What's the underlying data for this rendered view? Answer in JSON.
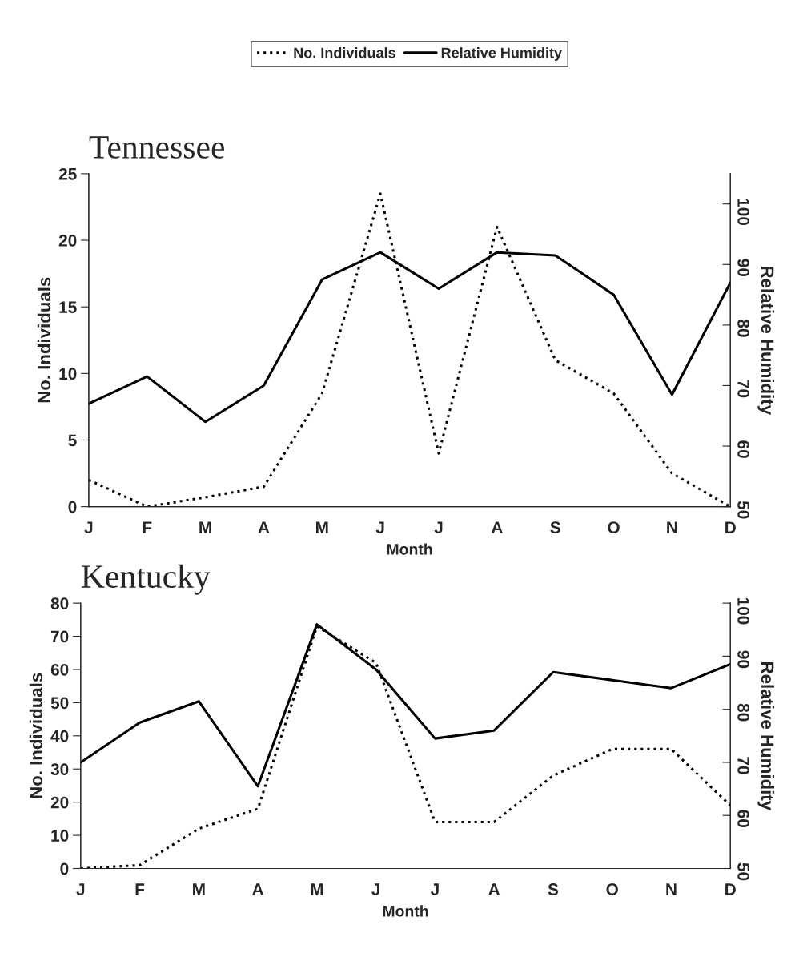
{
  "chart_data": [
    {
      "type": "line",
      "title": "Tennessee",
      "xlabel": "Month",
      "ylabel": "No. Individuals",
      "y2label": "Relative Humidity",
      "categories": [
        "J",
        "F",
        "M",
        "A",
        "M",
        "J",
        "J",
        "A",
        "S",
        "O",
        "N",
        "D"
      ],
      "series": [
        {
          "name": "No. Individuals",
          "color": "#000000",
          "line_style": "dotted",
          "values": [
            2,
            0,
            0.7,
            1.5,
            8.5,
            23.5,
            4,
            21,
            11,
            8.5,
            2.5,
            0
          ]
        },
        {
          "name": "Relative Humidity",
          "color": "#000000",
          "line_style": "solid",
          "axis": "y2",
          "values": [
            67,
            71.5,
            64,
            70,
            87.5,
            92,
            86,
            92,
            91.5,
            85,
            68.5,
            87
          ]
        }
      ],
      "ylim": [
        0,
        25
      ],
      "yticks": [
        0,
        5,
        10,
        15,
        20,
        25
      ],
      "y2lim": [
        50,
        105
      ],
      "y2ticks": [
        50,
        60,
        70,
        80,
        90,
        100
      ],
      "legend": "top",
      "grid": false,
      "marker": "none"
    },
    {
      "type": "line",
      "title": "Kentucky",
      "xlabel": "Month",
      "ylabel": "No. Individuals",
      "y2label": "Relative Humidity",
      "categories": [
        "J",
        "F",
        "M",
        "A",
        "M",
        "J",
        "J",
        "A",
        "S",
        "O",
        "N",
        "D"
      ],
      "series": [
        {
          "color": "#000000",
          "line_style": "dotted",
          "values": [
            0,
            1,
            12,
            18,
            73,
            62,
            14,
            14,
            28,
            36,
            36,
            19
          ]
        },
        {
          "color": "#000000",
          "line_style": "solid",
          "axis": "y2",
          "values": [
            70,
            77.5,
            81.5,
            65.5,
            96,
            87.5,
            74.5,
            76,
            87,
            85.5,
            84,
            88.5
          ]
        }
      ],
      "ylim": [
        0,
        80
      ],
      "yticks": [
        0,
        10,
        20,
        30,
        40,
        50,
        60,
        70,
        80
      ],
      "y2lim": [
        50,
        100
      ],
      "y2ticks": [
        50,
        60,
        70,
        80,
        90,
        100
      ],
      "legend": false,
      "grid": false,
      "marker": "none"
    }
  ]
}
